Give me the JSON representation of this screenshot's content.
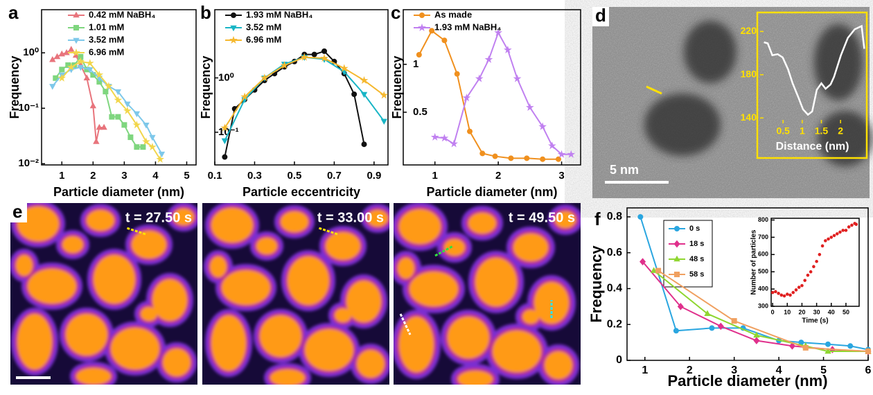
{
  "panel_labels": [
    "a",
    "b",
    "c",
    "d",
    "e",
    "f"
  ],
  "image_d": {
    "scale_bar": "5 nm"
  },
  "image_e": {
    "timestamps": [
      "t = 27.50 s",
      "t = 33.00 s",
      "t = 49.50 s"
    ]
  },
  "chart_data": [
    {
      "type": "line",
      "xlabel": "Particle diameter (nm)",
      "ylabel": "Frequency",
      "log_y": true,
      "xlim": [
        0.35,
        5.3
      ],
      "ylim": [
        0.0095,
        6
      ],
      "xticks": [
        1,
        2,
        3,
        4,
        5
      ],
      "yticks": [
        {
          "value": 0.01,
          "label": "10⁻²"
        },
        {
          "value": 0.1,
          "label": "10⁻¹"
        },
        {
          "value": 1,
          "label": "10⁰"
        }
      ],
      "legend": "upper right",
      "series": [
        {
          "name": "0.42 mM NaBH₄",
          "color": "#e8747c",
          "marker": "triangle",
          "x": [
            0.7,
            0.85,
            1.0,
            1.15,
            1.3,
            1.45,
            1.6,
            1.8,
            2.0,
            2.1,
            2.2,
            2.35
          ],
          "values": [
            0.75,
            0.85,
            0.95,
            1.0,
            1.15,
            0.9,
            0.6,
            0.35,
            0.11,
            0.025,
            0.045,
            0.045
          ]
        },
        {
          "name": "1.01 mM",
          "color": "#7fd67f",
          "marker": "square",
          "x": [
            0.8,
            1.0,
            1.2,
            1.4,
            1.6,
            1.8,
            2.0,
            2.2,
            2.4,
            2.6,
            2.8,
            3.0,
            3.2,
            3.4,
            3.6
          ],
          "values": [
            0.35,
            0.5,
            0.6,
            0.6,
            0.85,
            0.5,
            0.4,
            0.3,
            0.2,
            0.07,
            0.07,
            0.05,
            0.03,
            0.02,
            0.02
          ]
        },
        {
          "name": "3.52 mM",
          "color": "#7ec8ea",
          "marker": "down-triangle",
          "x": [
            0.7,
            1.0,
            1.3,
            1.6,
            1.9,
            2.2,
            2.5,
            2.8,
            3.1,
            3.4,
            3.7,
            3.9,
            4.2
          ],
          "values": [
            0.25,
            0.4,
            0.5,
            0.55,
            0.5,
            0.35,
            0.25,
            0.2,
            0.12,
            0.08,
            0.05,
            0.03,
            0.015
          ]
        },
        {
          "name": "6.96 mM",
          "color": "#f2d64b",
          "marker": "star",
          "x": [
            1.0,
            1.3,
            1.6,
            1.9,
            2.2,
            2.5,
            2.8,
            3.1,
            3.4,
            3.7,
            3.9,
            4.15
          ],
          "values": [
            0.35,
            0.55,
            0.7,
            0.65,
            0.4,
            0.25,
            0.14,
            0.09,
            0.05,
            0.025,
            0.02,
            0.012
          ]
        }
      ]
    },
    {
      "type": "line",
      "xlabel": "Particle eccentricity",
      "ylabel": "Frequency",
      "log_y": true,
      "xlim": [
        0.1,
        0.97
      ],
      "ylim": [
        0.025,
        18
      ],
      "xticks": [
        0.1,
        0.3,
        0.5,
        0.7,
        0.9
      ],
      "yticks": [
        {
          "value": 0.1,
          "label": "10⁻¹"
        },
        {
          "value": 1,
          "label": "10⁰"
        }
      ],
      "legend": "upper left",
      "series": [
        {
          "name": "1.93 mM NaBH₄",
          "color": "#111111",
          "marker": "circle",
          "x": [
            0.15,
            0.2,
            0.25,
            0.3,
            0.35,
            0.4,
            0.45,
            0.5,
            0.55,
            0.6,
            0.65,
            0.7,
            0.75,
            0.8,
            0.85
          ],
          "values": [
            0.035,
            0.27,
            0.4,
            0.6,
            0.9,
            1.2,
            1.6,
            2.0,
            2.7,
            2.7,
            3.1,
            2.0,
            1.2,
            0.5,
            0.06
          ]
        },
        {
          "name": "3.52 mM",
          "color": "#19b5c5",
          "marker": "down-triangle",
          "x": [
            0.15,
            0.25,
            0.35,
            0.45,
            0.55,
            0.65,
            0.75,
            0.85,
            0.95
          ],
          "values": [
            0.07,
            0.4,
            1.0,
            1.8,
            2.4,
            2.2,
            1.3,
            0.5,
            0.16
          ]
        },
        {
          "name": "6.96 mM",
          "color": "#f5b82e",
          "marker": "star",
          "x": [
            0.15,
            0.25,
            0.35,
            0.45,
            0.55,
            0.65,
            0.75,
            0.85,
            0.95
          ],
          "values": [
            0.12,
            0.45,
            1.0,
            1.7,
            2.4,
            2.3,
            1.5,
            0.9,
            0.48
          ]
        }
      ]
    },
    {
      "type": "line",
      "xlabel": "Particle diameter (nm)",
      "ylabel": "Frequency",
      "log_y": false,
      "xlim": [
        0.5,
        3.3
      ],
      "ylim": [
        -0.05,
        1.57
      ],
      "xticks": [
        1,
        2,
        3
      ],
      "yticks": [
        0.5,
        1
      ],
      "legend": "upper left",
      "series": [
        {
          "name": "As made",
          "color": "#f0901e",
          "marker": "circle",
          "x": [
            0.75,
            0.95,
            1.15,
            1.35,
            1.55,
            1.75,
            1.95,
            2.2,
            2.45,
            2.7,
            2.95
          ],
          "values": [
            1.1,
            1.35,
            1.25,
            0.9,
            0.3,
            0.07,
            0.04,
            0.02,
            0.02,
            0.01,
            0.01
          ]
        },
        {
          "name": "1.93 mM NaBH₄",
          "color": "#c080f0",
          "marker": "star",
          "x": [
            1.0,
            1.15,
            1.3,
            1.5,
            1.7,
            1.85,
            2.0,
            2.15,
            2.3,
            2.5,
            2.7,
            2.85,
            3.0,
            3.15
          ],
          "values": [
            0.24,
            0.23,
            0.17,
            0.65,
            0.85,
            1.05,
            1.33,
            1.15,
            0.85,
            0.55,
            0.35,
            0.15,
            0.06,
            0.06
          ]
        }
      ]
    },
    {
      "type": "line",
      "xlabel": "Distance (nm)",
      "log_y": false,
      "xlim": [
        -0.1,
        2.63
      ],
      "ylim": [
        135,
        235
      ],
      "xticks": [
        0.5,
        1,
        1.5,
        2
      ],
      "yticks": [
        140,
        180,
        220
      ],
      "series": [
        {
          "color": "#ffffff",
          "marker": "none",
          "x": [
            0,
            0.1,
            0.22,
            0.36,
            0.49,
            0.63,
            0.75,
            0.9,
            1.02,
            1.15,
            1.26,
            1.38,
            1.5,
            1.61,
            1.74,
            1.83,
            2.01,
            2.19,
            2.37,
            2.55,
            2.62
          ],
          "values": [
            210,
            209,
            198,
            199,
            196,
            185,
            172,
            159,
            148,
            143,
            146,
            166,
            172,
            167,
            171,
            178,
            198,
            214,
            222,
            225,
            204
          ]
        }
      ]
    },
    {
      "type": "line",
      "xlabel": "Particle diameter (nm)",
      "ylabel": "Frequency",
      "log_y": false,
      "xlim": [
        0.6,
        6
      ],
      "ylim": [
        0,
        0.85
      ],
      "xticks": [
        1,
        2,
        3,
        4,
        5,
        6
      ],
      "yticks": [
        0,
        0.2,
        0.4,
        0.6,
        0.8
      ],
      "legend": "upper left",
      "series": [
        {
          "name": "0 s",
          "color": "#2aa6e0",
          "marker": "circle",
          "x": [
            0.9,
            1.7,
            2.5,
            3.2,
            4.0,
            4.5,
            5.1,
            5.6,
            6.0
          ],
          "values": [
            0.8,
            0.165,
            0.18,
            0.18,
            0.11,
            0.1,
            0.09,
            0.08,
            0.06
          ]
        },
        {
          "name": "18 s",
          "color": "#e0308c",
          "marker": "diamond",
          "x": [
            0.95,
            1.8,
            2.7,
            3.5,
            4.3,
            5.2,
            6.0
          ],
          "values": [
            0.55,
            0.3,
            0.19,
            0.11,
            0.08,
            0.06,
            0.05
          ]
        },
        {
          "name": "48 s",
          "color": "#8fd630",
          "marker": "triangle",
          "x": [
            1.2,
            2.4,
            3.5,
            4.6,
            5.1,
            6.0
          ],
          "values": [
            0.5,
            0.26,
            0.14,
            0.08,
            0.05,
            0.05
          ]
        },
        {
          "name": "58 s",
          "color": "#f0a060",
          "marker": "square",
          "x": [
            1.3,
            3.0,
            4.6,
            6.0
          ],
          "values": [
            0.5,
            0.22,
            0.07,
            0.05
          ]
        }
      ]
    },
    {
      "type": "scatter",
      "xlabel": "Time (s)",
      "ylabel": "Number of particles",
      "log_y": false,
      "xlim": [
        -1,
        59
      ],
      "ylim": [
        300,
        810
      ],
      "xticks": [
        0,
        10,
        20,
        30,
        40,
        50
      ],
      "yticks": [
        300,
        400,
        500,
        600,
        700,
        800
      ],
      "series": [
        {
          "color": "#e02020",
          "marker": "circle",
          "x": [
            0,
            2,
            4,
            6,
            8,
            10,
            12,
            14,
            16,
            18,
            20,
            22,
            24,
            26,
            28,
            30,
            32,
            34,
            36,
            38,
            40,
            42,
            44,
            46,
            48,
            50,
            52,
            54,
            56,
            57
          ],
          "values": [
            380,
            385,
            375,
            365,
            360,
            370,
            365,
            380,
            395,
            410,
            420,
            450,
            480,
            500,
            530,
            560,
            600,
            650,
            680,
            690,
            700,
            710,
            720,
            730,
            740,
            740,
            760,
            770,
            780,
            775
          ]
        }
      ]
    }
  ]
}
